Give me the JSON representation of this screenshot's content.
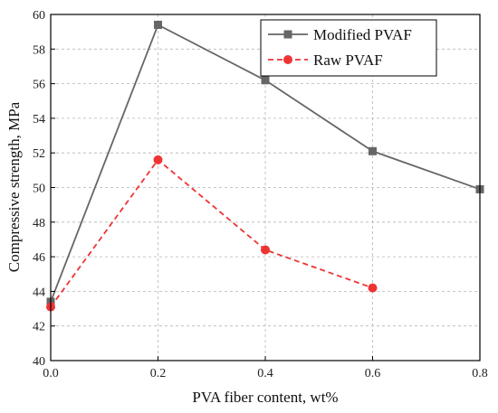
{
  "chart_data": {
    "type": "line",
    "title": "",
    "xlabel": "PVA fiber content, wt%",
    "ylabel": "Compressive strength, MPa",
    "xlim": [
      0.0,
      0.8
    ],
    "ylim": [
      40,
      60
    ],
    "xticks": [
      "0.0",
      "0.2",
      "0.4",
      "0.6",
      "0.8"
    ],
    "yticks": [
      "40",
      "42",
      "44",
      "46",
      "48",
      "50",
      "52",
      "54",
      "56",
      "58",
      "60"
    ],
    "grid": true,
    "legend_position": "top-right",
    "series": [
      {
        "name": "Modified PVAF",
        "color": "#666666",
        "line_style": "solid",
        "marker": "square",
        "x": [
          0.0,
          0.2,
          0.4,
          0.6,
          0.8
        ],
        "y": [
          43.4,
          59.4,
          56.2,
          52.1,
          49.9
        ]
      },
      {
        "name": "Raw PVAF",
        "color": "#ee3333",
        "line_style": "dashed",
        "marker": "circle",
        "x": [
          0.0,
          0.2,
          0.4,
          0.6
        ],
        "y": [
          43.1,
          51.6,
          46.4,
          44.2
        ]
      }
    ]
  }
}
